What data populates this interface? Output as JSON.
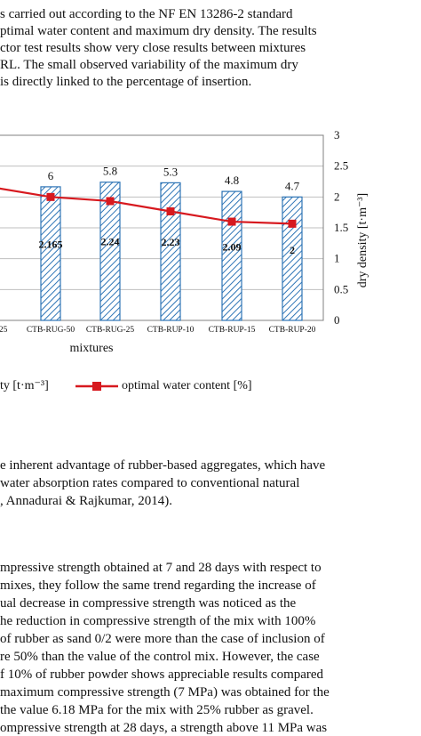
{
  "top_paragraph": [
    "s carried out according to the NF EN 13286-2 standard",
    "ptimal water content and maximum dry density. The results",
    "ctor test results show very close results between mixtures",
    "RL. The small observed variability of the maximum dry",
    "is directly linked to the percentage of insertion."
  ],
  "chart_data": {
    "type": "bar",
    "categories": [
      "-25",
      "CTB-RUG-50",
      "CTB-RUG-25",
      "CTB-RUP-10",
      "CTB-RUP-15",
      "CTB-RUP-20"
    ],
    "series": [
      {
        "name": "ty [t·m⁻³]",
        "type": "bar",
        "values": [
          null,
          2.165,
          2.24,
          2.23,
          2.09,
          2.0
        ],
        "labels": [
          "",
          "2.165",
          "2.24",
          "2.23",
          "2.09",
          "2"
        ]
      },
      {
        "name": "optimal water content [%]",
        "type": "line",
        "values": [
          null,
          6,
          5.8,
          5.3,
          4.8,
          4.7
        ],
        "labels": [
          "",
          "6",
          "5.8",
          "5.3",
          "4.8",
          "4.7"
        ],
        "color": "#d7191f"
      }
    ],
    "xlabel": "mixtures",
    "ylabel_right": "dry density [t·m⁻³]",
    "y_right_ticks": [
      "0",
      "0.5",
      "1",
      "1.5",
      "2",
      "2.5",
      "3"
    ],
    "ylim_right": [
      0,
      3
    ],
    "ylim_water": [
      0,
      9
    ],
    "bar_color": "#2e75b6",
    "legend_placement": "bottom"
  },
  "middle_paragraph": [
    "e inherent advantage of rubber-based aggregates, which have",
    "water absorption rates compared to conventional natural",
    ", Annadurai & Rajkumar, 2014)."
  ],
  "bottom_paragraph": [
    "mpressive strength obtained at 7 and 28 days with respect to",
    "mixes, they follow the same trend regarding the increase of",
    "ual decrease in compressive strength was noticed as the",
    "he reduction in compressive strength of the mix with 100%",
    "of rubber as sand 0/2 were more than the case of inclusion of",
    "re 50% than the value of the control mix. However, the case",
    "f 10% of rubber powder shows appreciable results compared",
    "maximum compressive strength (7 MPa) was obtained for the",
    "the value 6.18 MPa for the mix with 25% rubber as gravel.",
    "ompressive strength at 28 days, a strength above 11 MPa was"
  ]
}
